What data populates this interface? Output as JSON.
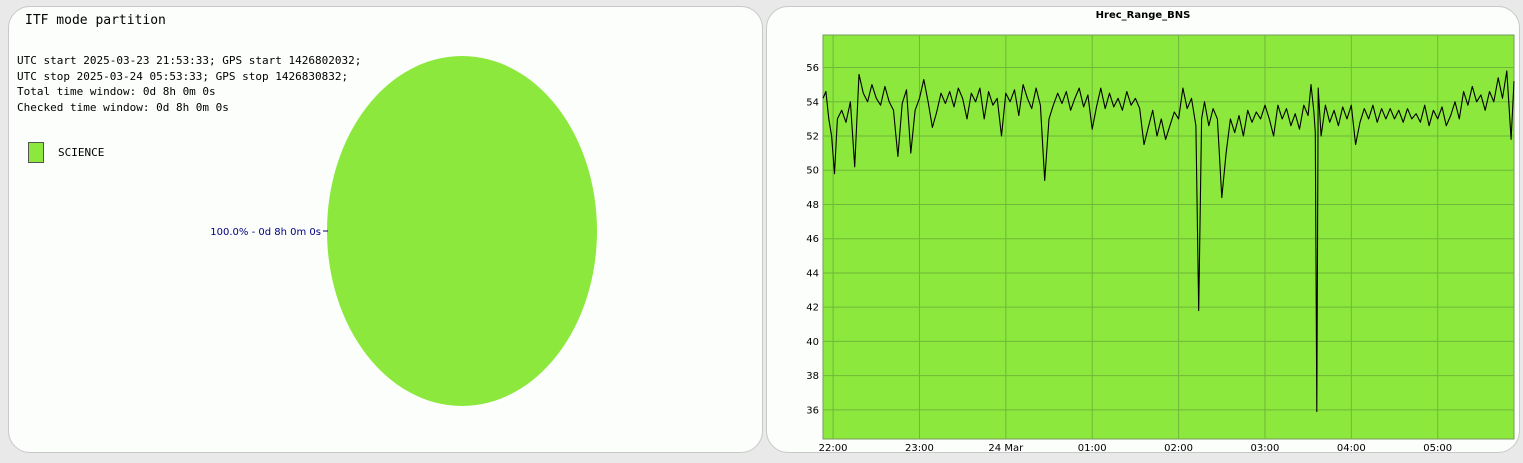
{
  "pie_panel": {
    "title": "ITF mode partition",
    "info_lines": [
      "UTC start 2025-03-23 21:53:33; GPS start 1426802032;",
      "UTC stop 2025-03-24 05:53:33; GPS stop 1426830832;",
      "Total time window: 0d 8h 0m 0s",
      "Checked time window: 0d 8h 0m 0s"
    ]
  },
  "chart_data": [
    {
      "type": "pie",
      "title": "ITF mode partition",
      "legend": [
        "SCIENCE"
      ],
      "slices": [
        {
          "label": "SCIENCE",
          "value": 100.0,
          "annotation": "100.0% - 0d 8h 0m 0s",
          "color": "#8ce83c"
        }
      ]
    },
    {
      "type": "line",
      "title": "Hrec_Range_BNS",
      "xlabel": "",
      "ylabel": "",
      "x_range": [
        "2025-03-23 21:53:33",
        "2025-03-24 05:53:33"
      ],
      "ylim": [
        34.3,
        57.9
      ],
      "y_ticks": [
        36,
        38,
        40,
        42,
        44,
        46,
        48,
        50,
        52,
        54,
        56
      ],
      "x_tick_labels": [
        "22:00",
        "23:00",
        "24 Mar",
        "01:00",
        "02:00",
        "03:00",
        "04:00",
        "05:00"
      ],
      "background_color": "#8ce83c",
      "line_color": "#000000",
      "grid": true,
      "series": [
        {
          "x": [
            "21:53",
            "21:55",
            "21:57",
            "21:59",
            "22:01",
            "22:03",
            "22:06",
            "22:09",
            "22:12",
            "22:15",
            "22:18",
            "22:21",
            "22:24",
            "22:27",
            "22:30",
            "22:33",
            "22:36",
            "22:39",
            "22:42",
            "22:45",
            "22:48",
            "22:51",
            "22:54",
            "22:57",
            "23:00",
            "23:03",
            "23:06",
            "23:09",
            "23:12",
            "23:15",
            "23:18",
            "23:21",
            "23:24",
            "23:27",
            "23:30",
            "23:33",
            "23:36",
            "23:39",
            "23:42",
            "23:45",
            "23:48",
            "23:51",
            "23:54",
            "23:57",
            "00:00",
            "00:03",
            "00:06",
            "00:09",
            "00:12",
            "00:15",
            "00:18",
            "00:21",
            "00:24",
            "00:27",
            "00:30",
            "00:33",
            "00:36",
            "00:39",
            "00:42",
            "00:45",
            "00:48",
            "00:51",
            "00:54",
            "00:57",
            "01:00",
            "01:03",
            "01:06",
            "01:09",
            "01:12",
            "01:15",
            "01:18",
            "01:21",
            "01:24",
            "01:27",
            "01:30",
            "01:33",
            "01:36",
            "01:39",
            "01:42",
            "01:45",
            "01:48",
            "01:51",
            "01:54",
            "01:57",
            "02:00",
            "02:03",
            "02:06",
            "02:09",
            "02:12",
            "02:14",
            "02:16",
            "02:18",
            "02:21",
            "02:24",
            "02:27",
            "02:30",
            "02:33",
            "02:36",
            "02:39",
            "02:42",
            "02:45",
            "02:48",
            "02:51",
            "02:54",
            "02:57",
            "03:00",
            "03:03",
            "03:06",
            "03:09",
            "03:12",
            "03:15",
            "03:18",
            "03:21",
            "03:24",
            "03:27",
            "03:30",
            "03:32",
            "03:34",
            "03:35",
            "03:36",
            "03:37",
            "03:39",
            "03:42",
            "03:45",
            "03:48",
            "03:51",
            "03:54",
            "03:57",
            "04:00",
            "04:03",
            "04:06",
            "04:09",
            "04:12",
            "04:15",
            "04:18",
            "04:21",
            "04:24",
            "04:27",
            "04:30",
            "04:33",
            "04:36",
            "04:39",
            "04:42",
            "04:45",
            "04:48",
            "04:51",
            "04:54",
            "04:57",
            "05:00",
            "05:03",
            "05:06",
            "05:09",
            "05:12",
            "05:15",
            "05:18",
            "05:21",
            "05:24",
            "05:27",
            "05:30",
            "05:33",
            "05:36",
            "05:39",
            "05:42",
            "05:45",
            "05:48",
            "05:51",
            "05:53"
          ],
          "y": [
            54.2,
            54.6,
            53.0,
            52.0,
            49.8,
            53.0,
            53.5,
            52.8,
            54.0,
            50.2,
            55.6,
            54.5,
            54.0,
            55.0,
            54.2,
            53.8,
            54.9,
            54.0,
            53.5,
            50.8,
            53.9,
            54.7,
            51.0,
            53.5,
            54.2,
            55.3,
            54.0,
            52.5,
            53.4,
            54.5,
            53.9,
            54.6,
            53.7,
            54.8,
            54.2,
            53.0,
            54.5,
            54.0,
            54.8,
            53.0,
            54.6,
            53.8,
            54.2,
            52.0,
            54.5,
            54.0,
            54.7,
            53.2,
            55.0,
            54.2,
            53.6,
            54.8,
            53.8,
            49.4,
            53.0,
            53.8,
            54.5,
            53.9,
            54.6,
            53.5,
            54.2,
            54.8,
            53.7,
            54.4,
            52.4,
            53.7,
            54.8,
            53.6,
            54.5,
            53.7,
            54.2,
            53.5,
            54.6,
            53.8,
            54.2,
            53.6,
            51.5,
            52.5,
            53.5,
            52.0,
            53.0,
            51.8,
            52.6,
            53.4,
            53.0,
            54.8,
            53.6,
            54.2,
            52.6,
            41.8,
            53.0,
            54.0,
            52.6,
            53.6,
            53.0,
            48.4,
            51.0,
            53.0,
            52.2,
            53.2,
            52.0,
            53.5,
            52.8,
            53.4,
            53.0,
            53.8,
            53.0,
            52.0,
            53.8,
            53.0,
            53.6,
            52.6,
            53.3,
            52.4,
            53.8,
            53.2,
            55.0,
            53.4,
            52.2,
            35.9,
            54.8,
            52.0,
            53.8,
            52.8,
            53.5,
            52.6,
            53.7,
            53.0,
            53.8,
            51.5,
            52.8,
            53.6,
            53.0,
            53.8,
            52.8,
            53.6,
            53.0,
            53.6,
            53.0,
            53.5,
            52.8,
            53.6,
            53.0,
            53.3,
            52.8,
            53.8,
            52.6,
            53.5,
            53.0,
            53.7,
            52.6,
            53.2,
            54.0,
            53.0,
            54.6,
            53.8,
            54.9,
            54.0,
            54.4,
            53.5,
            54.6,
            54.0,
            55.4,
            54.2,
            55.8,
            51.8,
            55.2
          ]
        }
      ]
    }
  ]
}
